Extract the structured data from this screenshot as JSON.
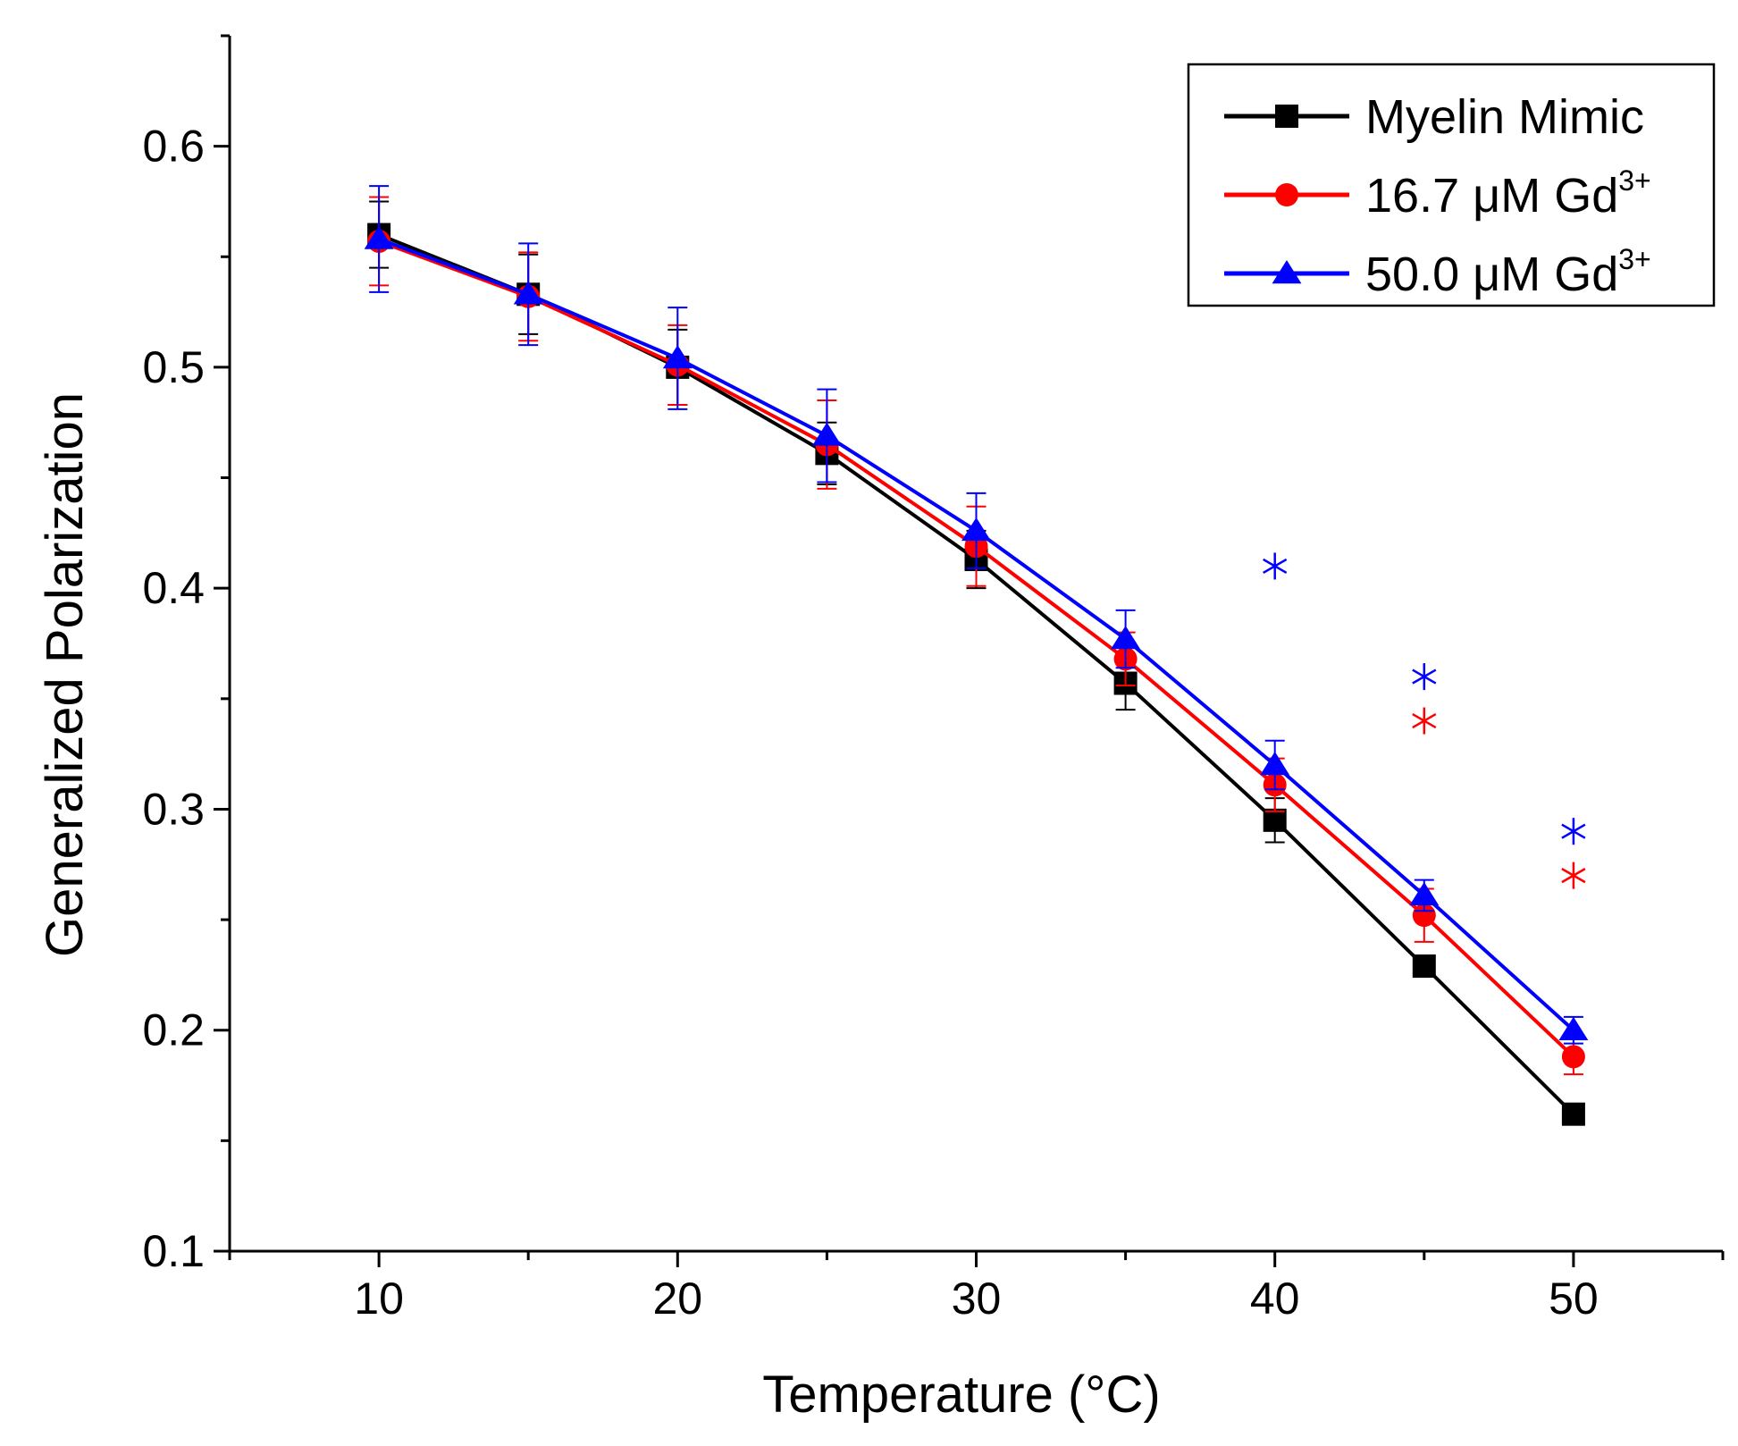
{
  "chart_data": {
    "type": "line",
    "title": "",
    "xlabel": "Temperature (°C)",
    "ylabel": "Generalized Polarization",
    "xlim": [
      5,
      55
    ],
    "ylim": [
      0.1,
      0.65
    ],
    "x_ticks": [
      10,
      20,
      30,
      40,
      50
    ],
    "x_tick_labels": [
      "10",
      "20",
      "30",
      "40",
      "50"
    ],
    "x_minor_ticks": [
      5,
      15,
      25,
      35,
      45,
      55
    ],
    "y_ticks": [
      0.1,
      0.2,
      0.3,
      0.4,
      0.5,
      0.6
    ],
    "y_tick_labels": [
      "0.1",
      "0.2",
      "0.3",
      "0.4",
      "0.5",
      "0.6"
    ],
    "y_minor_ticks": [
      0.15,
      0.25,
      0.35,
      0.45,
      0.55,
      0.65
    ],
    "grid": false,
    "legend_position": "top-right",
    "x": [
      10,
      15,
      20,
      25,
      30,
      35,
      40,
      45,
      50
    ],
    "series": [
      {
        "name": "Myelin Mimic",
        "legend_main": "Myelin Mimic",
        "legend_sup": "",
        "color": "#000000",
        "marker": "square",
        "values": [
          0.56,
          0.533,
          0.5,
          0.461,
          0.413,
          0.357,
          0.295,
          0.229,
          0.162
        ],
        "errors": [
          0.015,
          0.018,
          0.017,
          0.014,
          0.013,
          0.012,
          0.01,
          0.004,
          0.004
        ]
      },
      {
        "name": "16.7 μM Gd3+",
        "legend_main": "16.7 μM Gd",
        "legend_sup": "3+",
        "color": "#ff0000",
        "marker": "circle",
        "values": [
          0.557,
          0.532,
          0.501,
          0.465,
          0.419,
          0.368,
          0.311,
          0.252,
          0.188
        ],
        "errors": [
          0.02,
          0.02,
          0.018,
          0.02,
          0.018,
          0.012,
          0.012,
          0.012,
          0.008
        ]
      },
      {
        "name": "50.0 μM Gd3+",
        "legend_main": "50.0 μM Gd",
        "legend_sup": "3+",
        "color": "#0000ff",
        "marker": "triangle",
        "values": [
          0.558,
          0.533,
          0.504,
          0.469,
          0.426,
          0.377,
          0.32,
          0.261,
          0.2
        ],
        "errors": [
          0.024,
          0.023,
          0.023,
          0.021,
          0.017,
          0.013,
          0.011,
          0.007,
          0.006
        ]
      }
    ],
    "annotations": [
      {
        "type": "asterisk",
        "x": 40,
        "y": 0.41,
        "color": "#0000ff"
      },
      {
        "type": "asterisk",
        "x": 45,
        "y": 0.36,
        "color": "#0000ff"
      },
      {
        "type": "asterisk",
        "x": 45,
        "y": 0.34,
        "color": "#ff0000"
      },
      {
        "type": "asterisk",
        "x": 50,
        "y": 0.29,
        "color": "#0000ff"
      },
      {
        "type": "asterisk",
        "x": 50,
        "y": 0.27,
        "color": "#ff0000"
      }
    ]
  }
}
